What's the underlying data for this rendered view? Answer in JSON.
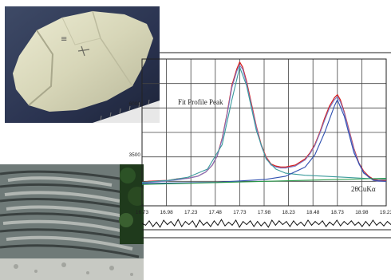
{
  "images": {
    "rock": "rock-specimen-photo",
    "cliff": "layered-limestone-outcrop-photo"
  },
  "chart_data": {
    "type": "line",
    "title": "",
    "annotation": "Fit Profile Peak",
    "xlabel": "2θCuKα",
    "ylabel": "",
    "x_ticks": [
      "16.73",
      "16.98",
      "17.23",
      "17.48",
      "17.73",
      "17.98",
      "18.23",
      "18.48",
      "18.73",
      "18.98",
      "19.23"
    ],
    "y_ticks": [
      "6000",
      "3500"
    ],
    "xlim": [
      16.73,
      19.23
    ],
    "ylim": [
      1000,
      8200
    ],
    "grid": true,
    "series": [
      {
        "role": "observed",
        "color": "#d42020",
        "x": [
          16.73,
          16.8,
          16.9,
          17.0,
          17.1,
          17.2,
          17.3,
          17.38,
          17.45,
          17.5,
          17.55,
          17.6,
          17.65,
          17.7,
          17.73,
          17.76,
          17.8,
          17.85,
          17.9,
          17.95,
          18.0,
          18.05,
          18.1,
          18.15,
          18.2,
          18.25,
          18.3,
          18.35,
          18.4,
          18.45,
          18.5,
          18.55,
          18.6,
          18.65,
          18.7,
          18.73,
          18.76,
          18.8,
          18.85,
          18.9,
          18.95,
          19.0,
          19.05,
          19.1,
          19.15,
          19.23
        ],
        "y": [
          2150,
          2200,
          2230,
          2250,
          2330,
          2350,
          2450,
          2650,
          3000,
          3450,
          4300,
          5500,
          6900,
          7700,
          8050,
          7800,
          7100,
          6000,
          4900,
          4000,
          3400,
          3050,
          2950,
          2900,
          2900,
          2950,
          3000,
          3150,
          3300,
          3600,
          4000,
          4600,
          5300,
          5900,
          6300,
          6450,
          6200,
          5600,
          4700,
          3800,
          3100,
          2700,
          2450,
          2300,
          2250,
          2250
        ]
      },
      {
        "role": "fit-profile",
        "color": "#7d7bc8",
        "x": [
          16.73,
          16.8,
          16.9,
          17.0,
          17.1,
          17.2,
          17.3,
          17.38,
          17.45,
          17.5,
          17.55,
          17.6,
          17.65,
          17.7,
          17.73,
          17.76,
          17.8,
          17.85,
          17.9,
          17.95,
          18.0,
          18.05,
          18.1,
          18.15,
          18.2,
          18.25,
          18.3,
          18.35,
          18.4,
          18.45,
          18.5,
          18.55,
          18.6,
          18.65,
          18.7,
          18.73,
          18.76,
          18.8,
          18.85,
          18.9,
          18.95,
          19.0,
          19.05,
          19.1,
          19.15,
          19.23
        ],
        "y": [
          2100,
          2150,
          2180,
          2230,
          2280,
          2350,
          2450,
          2650,
          3000,
          3450,
          4250,
          5450,
          6800,
          7600,
          7900,
          7700,
          7000,
          5900,
          4850,
          3950,
          3350,
          3000,
          2900,
          2850,
          2850,
          2900,
          2950,
          3100,
          3250,
          3550,
          3950,
          4550,
          5200,
          5800,
          6200,
          6350,
          6100,
          5550,
          4650,
          3750,
          3050,
          2650,
          2400,
          2250,
          2200,
          2200
        ]
      },
      {
        "role": "peak-1",
        "color": "#3a9a9c",
        "x": [
          16.73,
          17.0,
          17.2,
          17.4,
          17.55,
          17.65,
          17.73,
          17.8,
          17.9,
          18.0,
          18.1,
          18.2,
          18.4,
          18.6,
          18.8,
          19.0,
          19.23
        ],
        "y": [
          2150,
          2250,
          2400,
          2800,
          4000,
          6200,
          7800,
          6900,
          4700,
          3300,
          2800,
          2600,
          2500,
          2450,
          2400,
          2350,
          2300
        ]
      },
      {
        "role": "peak-2",
        "color": "#3050b0",
        "x": [
          16.73,
          17.5,
          18.0,
          18.2,
          18.4,
          18.5,
          18.6,
          18.7,
          18.73,
          18.8,
          18.9,
          19.0,
          19.1,
          19.23
        ],
        "y": [
          2100,
          2150,
          2300,
          2450,
          2900,
          3500,
          4600,
          5900,
          6200,
          5400,
          3600,
          2600,
          2250,
          2200
        ]
      },
      {
        "role": "background",
        "color": "#2a9a4a",
        "x": [
          16.73,
          19.23
        ],
        "y": [
          2050,
          2350
        ]
      }
    ],
    "residual": {
      "color": "#111111",
      "values": [
        0,
        3,
        -4,
        5,
        -2,
        6,
        -5,
        2,
        -3,
        4,
        -6,
        5,
        -3,
        2,
        -4,
        6,
        -5,
        3,
        -2,
        5,
        -4,
        3,
        -6,
        4,
        -2,
        3,
        -5,
        6,
        -3,
        2,
        -4,
        5,
        -3,
        4,
        -2,
        6,
        -5,
        3,
        -4,
        2,
        -3,
        5,
        -4,
        3,
        -2,
        4,
        -5,
        3,
        -3,
        2,
        -4,
        5,
        -2,
        3,
        -5,
        4,
        -3,
        2,
        -4,
        3,
        -2,
        5,
        -3,
        4,
        -5,
        3,
        -2,
        4,
        -3,
        2
      ]
    }
  }
}
